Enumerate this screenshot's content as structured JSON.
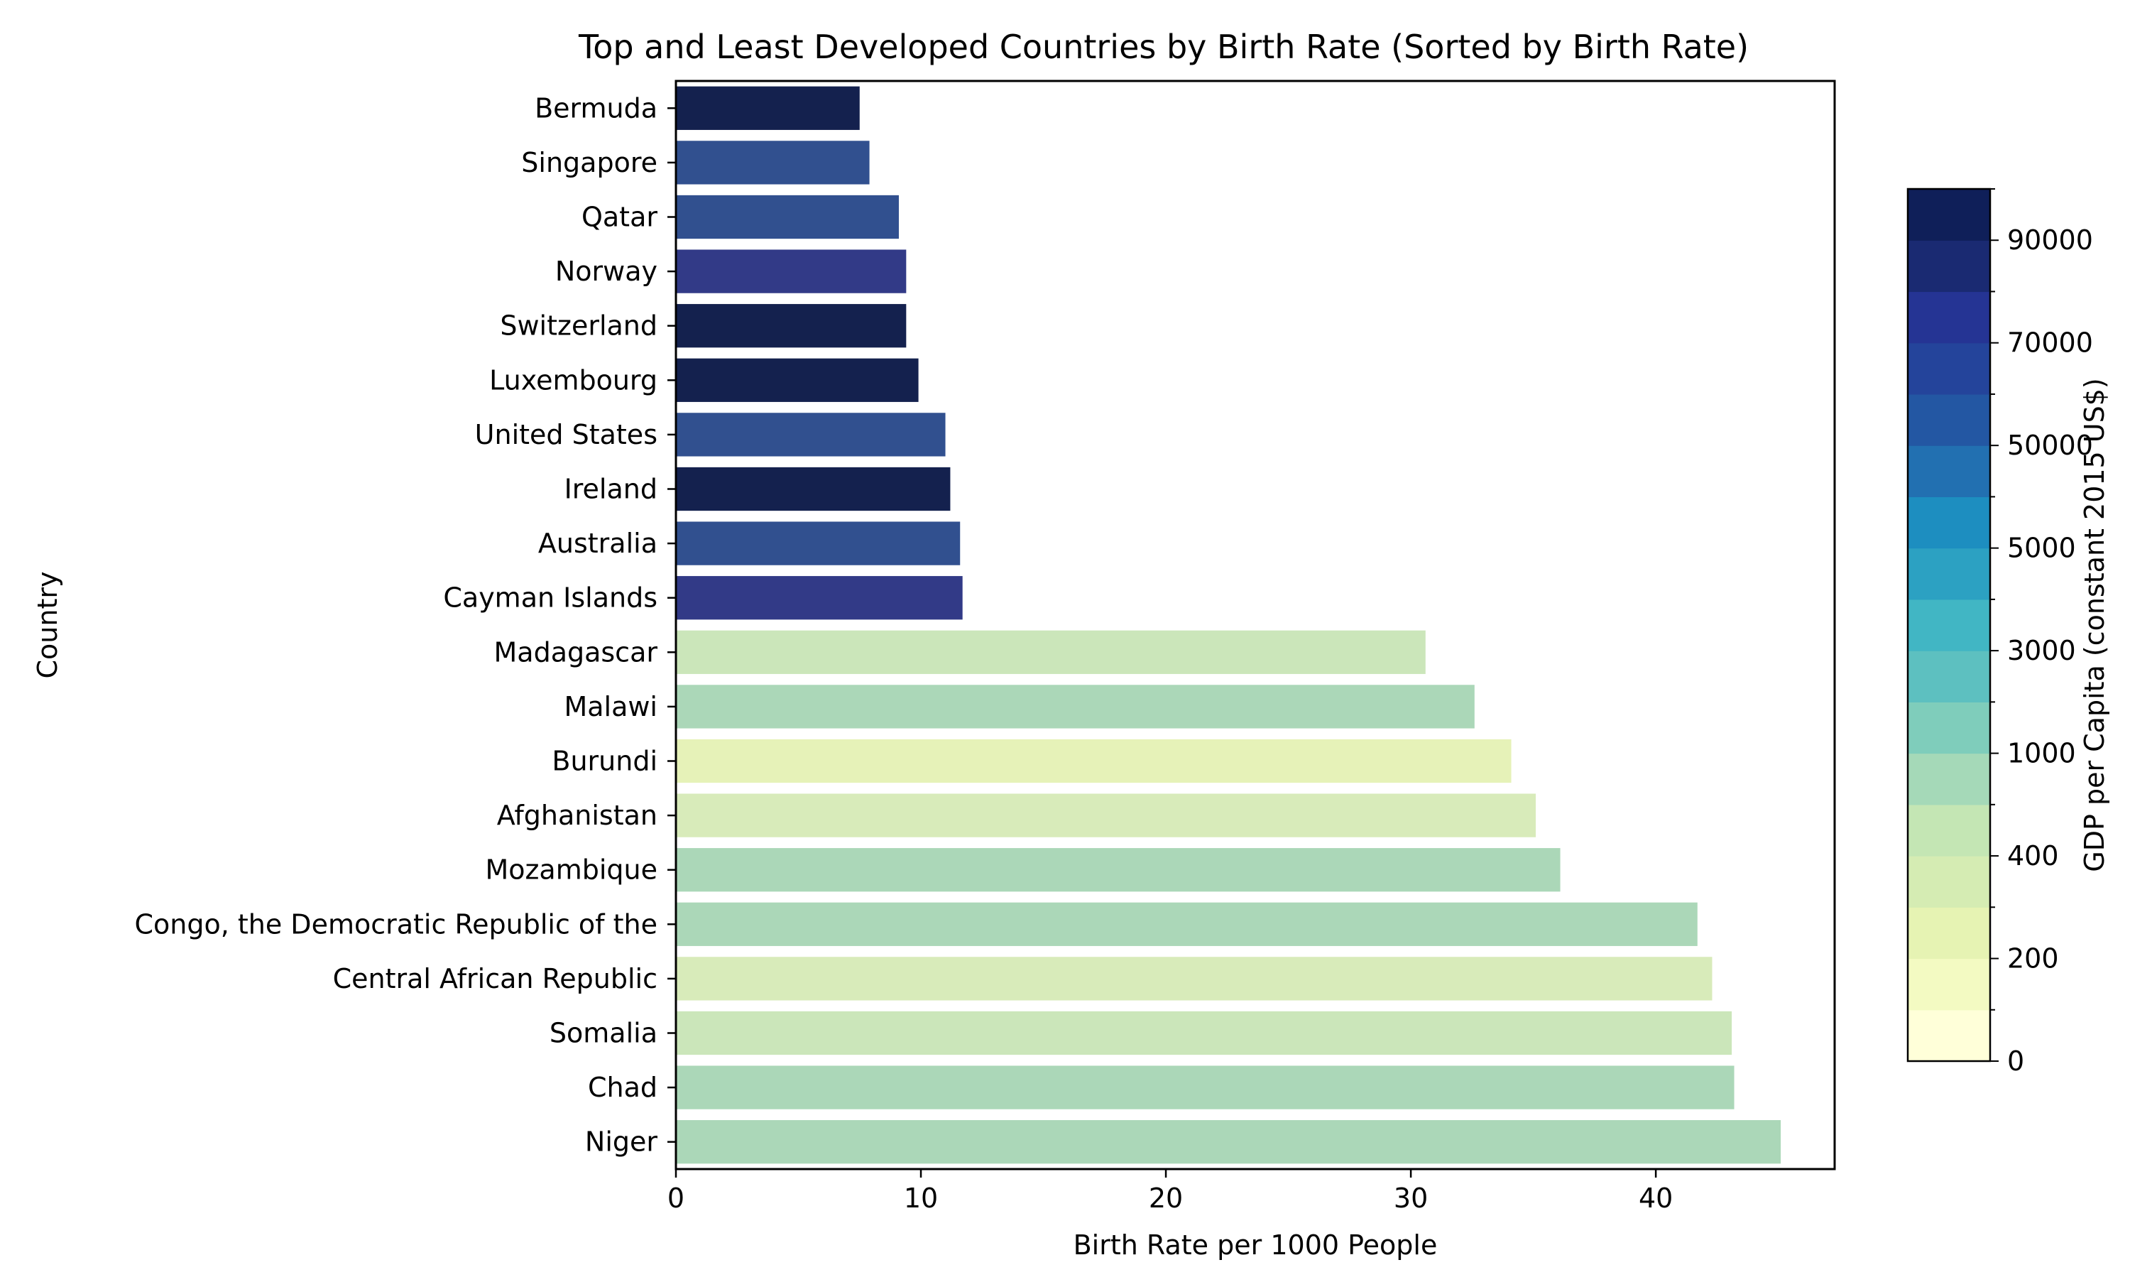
{
  "chart_data": {
    "type": "bar",
    "orientation": "horizontal",
    "title": "Top and Least Developed Countries by Birth Rate (Sorted by Birth Rate)",
    "xlabel": "Birth Rate per 1000 People",
    "ylabel": "Country",
    "xlim": [
      0,
      47.3
    ],
    "xticks": [
      0,
      10,
      20,
      30,
      40
    ],
    "grid": false,
    "categories": [
      "Bermuda",
      "Singapore",
      "Qatar",
      "Norway",
      "Switzerland",
      "Luxembourg",
      "United States",
      "Ireland",
      "Australia",
      "Cayman Islands",
      "Madagascar",
      "Malawi",
      "Burundi",
      "Afghanistan",
      "Mozambique",
      "Congo, the Democratic Republic of the",
      "Central African Republic",
      "Somalia",
      "Chad",
      "Niger"
    ],
    "values": [
      7.5,
      7.9,
      9.1,
      9.4,
      9.4,
      9.9,
      11.0,
      11.2,
      11.6,
      11.7,
      30.6,
      32.6,
      34.1,
      35.1,
      36.1,
      41.7,
      42.3,
      43.1,
      43.2,
      45.1
    ],
    "bar_colors": [
      "#14214e",
      "#31508f",
      "#31508f",
      "#323a87",
      "#14214e",
      "#14214e",
      "#31508f",
      "#14214e",
      "#31508f",
      "#323a87",
      "#cbe6ba",
      "#abd7b8",
      "#e6f2b8",
      "#d8ebba",
      "#abd7b8",
      "#abd7b8",
      "#d8ebba",
      "#cbe6ba",
      "#abd7b8",
      "#abd7b8"
    ],
    "colorbar": {
      "label": "GDP per Capita (constant 2015 US$)",
      "tick_labels": [
        "0",
        "200",
        "400",
        "1000",
        "3000",
        "5000",
        "50000",
        "70000",
        "90000"
      ],
      "bins": 17,
      "labeled_bins": [
        0,
        2,
        4,
        6,
        8,
        10,
        12,
        14,
        16
      ],
      "colors": [
        "#ffffd9",
        "#f3fac2",
        "#e6f3b3",
        "#d5ecb3",
        "#c4e6b4",
        "#a5d9b8",
        "#7fcdbb",
        "#5dc0c0",
        "#41b6c4",
        "#2ca1c2",
        "#1d8ec0",
        "#2270b1",
        "#2357a3",
        "#24449b",
        "#253494",
        "#1a2a72",
        "#0f1f59"
      ]
    }
  }
}
